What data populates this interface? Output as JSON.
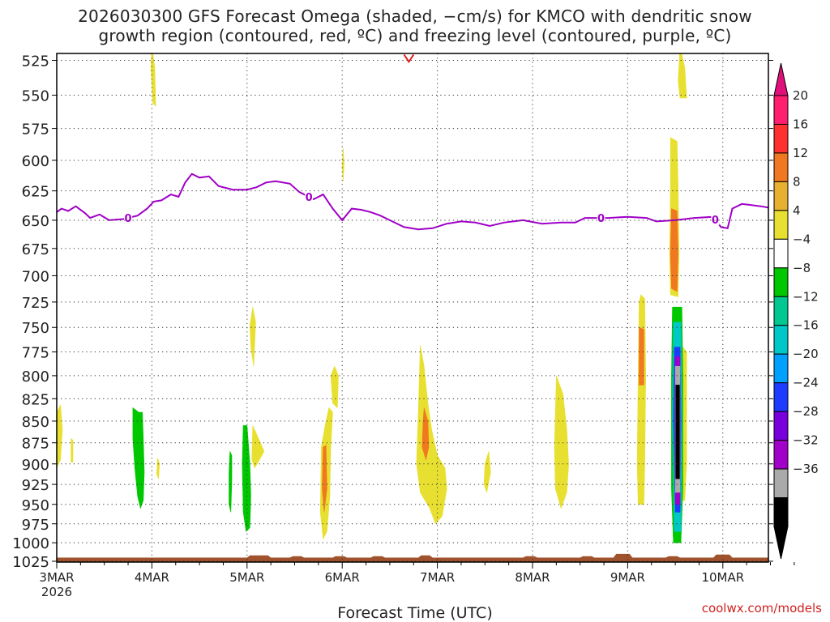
{
  "chart_data": {
    "type": "heatmap",
    "title_line1": "2026030300 GFS Forecast Omega (shaded, −cm/s) for KMCO with dendritic snow",
    "title_line2": "growth region (contoured, red, ºC) and freezing level (contoured, purple, ºC)",
    "xlabel": "Forecast Time (UTC)",
    "credit": "coolwx.com/models",
    "x_ticks": [
      {
        "day": 0,
        "label": "3MAR",
        "sub": "2026"
      },
      {
        "day": 1,
        "label": "4MAR"
      },
      {
        "day": 2,
        "label": "5MAR"
      },
      {
        "day": 3,
        "label": "6MAR"
      },
      {
        "day": 4,
        "label": "7MAR"
      },
      {
        "day": 5,
        "label": "8MAR"
      },
      {
        "day": 6,
        "label": "9MAR"
      },
      {
        "day": 7,
        "label": "10MAR"
      }
    ],
    "x_range_days": [
      0,
      7.7
    ],
    "y_ticks": [
      525,
      550,
      575,
      600,
      625,
      650,
      675,
      700,
      725,
      750,
      775,
      800,
      825,
      850,
      875,
      900,
      925,
      950,
      975,
      1000,
      1025
    ],
    "y_range_hpa": [
      520,
      1030
    ],
    "colorbar": {
      "labels": [
        "20",
        "16",
        "12",
        "8",
        "4",
        "−4",
        "−8",
        "−12",
        "−16",
        "−20",
        "−24",
        "−28",
        "−32",
        "−36"
      ],
      "colors": [
        "#ff1f6e",
        "#ff3030",
        "#f07820",
        "#e8b030",
        "#e8e030",
        "#ffffff",
        "#00c800",
        "#00c890",
        "#00c8c8",
        "#00a0ff",
        "#1e3cff",
        "#7800dc",
        "#a000c8",
        "#aaaaaa",
        "#000000"
      ],
      "top_arrow": "#e0107a",
      "bottom_arrow": "#000000"
    },
    "freezing_level": {
      "color": "#a000c8",
      "label": "0",
      "label_days": [
        0.75,
        2.65,
        5.72,
        6.92
      ],
      "points": [
        [
          0.0,
          643
        ],
        [
          0.05,
          640
        ],
        [
          0.12,
          642
        ],
        [
          0.2,
          638
        ],
        [
          0.3,
          644
        ],
        [
          0.35,
          648
        ],
        [
          0.45,
          645
        ],
        [
          0.55,
          650
        ],
        [
          0.7,
          649
        ],
        [
          0.85,
          646
        ],
        [
          0.95,
          640
        ],
        [
          1.02,
          634
        ],
        [
          1.1,
          633
        ],
        [
          1.2,
          628
        ],
        [
          1.28,
          630
        ],
        [
          1.35,
          618
        ],
        [
          1.42,
          611
        ],
        [
          1.5,
          614
        ],
        [
          1.6,
          613
        ],
        [
          1.7,
          621
        ],
        [
          1.85,
          624
        ],
        [
          2.0,
          624
        ],
        [
          2.1,
          622
        ],
        [
          2.2,
          618
        ],
        [
          2.3,
          617
        ],
        [
          2.45,
          619
        ],
        [
          2.55,
          626
        ],
        [
          2.7,
          632
        ],
        [
          2.8,
          628
        ],
        [
          2.9,
          640
        ],
        [
          3.0,
          650
        ],
        [
          3.1,
          640
        ],
        [
          3.2,
          641
        ],
        [
          3.3,
          643
        ],
        [
          3.4,
          646
        ],
        [
          3.5,
          650
        ],
        [
          3.65,
          656
        ],
        [
          3.8,
          658
        ],
        [
          3.95,
          657
        ],
        [
          4.1,
          653
        ],
        [
          4.25,
          651
        ],
        [
          4.4,
          652
        ],
        [
          4.55,
          655
        ],
        [
          4.7,
          652
        ],
        [
          4.9,
          650
        ],
        [
          5.1,
          653
        ],
        [
          5.3,
          652
        ],
        [
          5.45,
          652
        ],
        [
          5.55,
          648
        ],
        [
          5.8,
          648
        ],
        [
          6.0,
          647
        ],
        [
          6.2,
          648
        ],
        [
          6.3,
          651
        ],
        [
          6.5,
          650
        ],
        [
          6.7,
          648
        ],
        [
          6.9,
          647
        ],
        [
          6.98,
          656
        ],
        [
          7.05,
          657
        ],
        [
          7.1,
          640
        ],
        [
          7.2,
          636
        ],
        [
          7.4,
          638
        ],
        [
          7.6,
          641
        ],
        [
          7.7,
          641
        ]
      ]
    },
    "dgz_contour": {
      "color": "#e02020",
      "points": [
        [
          3.65,
          521
        ],
        [
          3.7,
          526
        ],
        [
          3.75,
          521
        ]
      ]
    },
    "omega_regions": [
      {
        "color": "#e8e030",
        "pts": [
          [
            1.0,
            515
          ],
          [
            1.03,
            530
          ],
          [
            1.04,
            558
          ],
          [
            1.01,
            556
          ],
          [
            0.99,
            530
          ]
        ]
      },
      {
        "color": "#e8e030",
        "pts": [
          [
            6.55,
            515
          ],
          [
            6.6,
            530
          ],
          [
            6.62,
            552
          ],
          [
            6.55,
            552
          ],
          [
            6.53,
            540
          ]
        ]
      },
      {
        "color": "#e8e030",
        "pts": [
          [
            3.01,
            590
          ],
          [
            3.02,
            603
          ],
          [
            3.01,
            617
          ],
          [
            3.0,
            605
          ]
        ]
      },
      {
        "color": "#e8e030",
        "pts": [
          [
            6.45,
            582
          ],
          [
            6.52,
            585
          ],
          [
            6.53,
            620
          ],
          [
            6.54,
            680
          ],
          [
            6.53,
            720
          ],
          [
            6.45,
            718
          ],
          [
            6.44,
            680
          ],
          [
            6.45,
            620
          ]
        ]
      },
      {
        "color": "#f07820",
        "pts": [
          [
            6.46,
            640
          ],
          [
            6.52,
            642
          ],
          [
            6.53,
            680
          ],
          [
            6.52,
            715
          ],
          [
            6.46,
            712
          ],
          [
            6.45,
            680
          ]
        ]
      },
      {
        "color": "#e8e030",
        "pts": [
          [
            2.06,
            730
          ],
          [
            2.09,
            745
          ],
          [
            2.07,
            790
          ],
          [
            2.04,
            770
          ],
          [
            2.03,
            748
          ]
        ]
      },
      {
        "color": "#e8e030",
        "pts": [
          [
            0.0,
            840
          ],
          [
            0.04,
            832
          ],
          [
            0.06,
            860
          ],
          [
            0.04,
            895
          ],
          [
            0.0,
            905
          ]
        ]
      },
      {
        "color": "#e8e030",
        "pts": [
          [
            0.15,
            870
          ],
          [
            0.17,
            872
          ],
          [
            0.17,
            898
          ],
          [
            0.15,
            898
          ]
        ]
      },
      {
        "color": "#e8e030",
        "pts": [
          [
            1.06,
            893
          ],
          [
            1.08,
            900
          ],
          [
            1.07,
            918
          ],
          [
            1.05,
            912
          ]
        ]
      },
      {
        "color": "#e8e030",
        "pts": [
          [
            2.06,
            855
          ],
          [
            2.12,
            870
          ],
          [
            2.18,
            885
          ],
          [
            2.13,
            895
          ],
          [
            2.08,
            905
          ],
          [
            2.05,
            895
          ]
        ]
      },
      {
        "color": "#e8e030",
        "pts": [
          [
            2.88,
            800
          ],
          [
            2.92,
            790
          ],
          [
            2.96,
            800
          ],
          [
            2.95,
            835
          ],
          [
            2.9,
            830
          ]
        ]
      },
      {
        "color": "#e8e030",
        "pts": [
          [
            2.82,
            855
          ],
          [
            2.86,
            835
          ],
          [
            2.9,
            840
          ],
          [
            2.88,
            880
          ],
          [
            2.87,
            940
          ],
          [
            2.84,
            985
          ],
          [
            2.8,
            995
          ],
          [
            2.77,
            960
          ],
          [
            2.78,
            880
          ]
        ]
      },
      {
        "color": "#f07820",
        "pts": [
          [
            2.8,
            880
          ],
          [
            2.83,
            878
          ],
          [
            2.84,
            930
          ],
          [
            2.81,
            960
          ],
          [
            2.79,
            930
          ]
        ]
      },
      {
        "color": "#e8e030",
        "pts": [
          [
            3.82,
            768
          ],
          [
            3.86,
            790
          ],
          [
            3.9,
            830
          ],
          [
            3.94,
            860
          ],
          [
            4.0,
            890
          ],
          [
            4.08,
            905
          ],
          [
            4.1,
            930
          ],
          [
            4.05,
            965
          ],
          [
            3.98,
            975
          ],
          [
            3.92,
            955
          ],
          [
            3.82,
            935
          ],
          [
            3.78,
            900
          ],
          [
            3.8,
            840
          ]
        ]
      },
      {
        "color": "#f07820",
        "pts": [
          [
            3.86,
            835
          ],
          [
            3.9,
            850
          ],
          [
            3.91,
            880
          ],
          [
            3.88,
            895
          ],
          [
            3.84,
            880
          ],
          [
            3.85,
            850
          ]
        ]
      },
      {
        "color": "#e8e030",
        "pts": [
          [
            4.5,
            900
          ],
          [
            4.54,
            885
          ],
          [
            4.56,
            910
          ],
          [
            4.52,
            935
          ],
          [
            4.49,
            925
          ]
        ]
      },
      {
        "color": "#e8e030",
        "pts": [
          [
            5.25,
            800
          ],
          [
            5.32,
            820
          ],
          [
            5.36,
            860
          ],
          [
            5.38,
            900
          ],
          [
            5.36,
            935
          ],
          [
            5.3,
            955
          ],
          [
            5.24,
            930
          ],
          [
            5.23,
            880
          ],
          [
            5.24,
            840
          ]
        ]
      },
      {
        "color": "#e8e030",
        "pts": [
          [
            6.14,
            718
          ],
          [
            6.18,
            722
          ],
          [
            6.19,
            800
          ],
          [
            6.18,
            900
          ],
          [
            6.17,
            950
          ],
          [
            6.11,
            950
          ],
          [
            6.1,
            900
          ],
          [
            6.11,
            800
          ],
          [
            6.12,
            725
          ]
        ]
      },
      {
        "color": "#f07820",
        "pts": [
          [
            6.12,
            750
          ],
          [
            6.17,
            752
          ],
          [
            6.17,
            810
          ],
          [
            6.12,
            810
          ]
        ]
      },
      {
        "color": "#e8e030",
        "pts": [
          [
            6.58,
            770
          ],
          [
            6.62,
            775
          ],
          [
            6.62,
            900
          ],
          [
            6.6,
            945
          ],
          [
            6.56,
            945
          ],
          [
            6.55,
            850
          ],
          [
            6.56,
            785
          ]
        ]
      },
      {
        "color": "#00c800",
        "pts": [
          [
            0.8,
            835
          ],
          [
            0.86,
            840
          ],
          [
            0.9,
            840
          ],
          [
            0.91,
            870
          ],
          [
            0.92,
            910
          ],
          [
            0.91,
            945
          ],
          [
            0.88,
            955
          ],
          [
            0.85,
            940
          ],
          [
            0.82,
            905
          ],
          [
            0.8,
            870
          ]
        ]
      },
      {
        "color": "#00c800",
        "pts": [
          [
            1.82,
            885
          ],
          [
            1.84,
            890
          ],
          [
            1.84,
            920
          ],
          [
            1.83,
            960
          ],
          [
            1.81,
            950
          ],
          [
            1.81,
            910
          ]
        ]
      },
      {
        "color": "#00c800",
        "pts": [
          [
            1.96,
            855
          ],
          [
            2.0,
            855
          ],
          [
            2.03,
            900
          ],
          [
            2.04,
            940
          ],
          [
            2.03,
            980
          ],
          [
            1.99,
            985
          ],
          [
            1.96,
            960
          ],
          [
            1.95,
            900
          ]
        ]
      },
      {
        "color": "#00c800",
        "pts": [
          [
            6.47,
            730
          ],
          [
            6.57,
            730
          ],
          [
            6.58,
            800
          ],
          [
            6.58,
            930
          ],
          [
            6.56,
            1000
          ],
          [
            6.48,
            1000
          ],
          [
            6.46,
            930
          ],
          [
            6.46,
            800
          ]
        ]
      },
      {
        "color": "#00c8c8",
        "pts": [
          [
            6.48,
            745
          ],
          [
            6.56,
            745
          ],
          [
            6.57,
            850
          ],
          [
            6.56,
            985
          ],
          [
            6.49,
            985
          ],
          [
            6.47,
            850
          ]
        ]
      },
      {
        "color": "#1e3cff",
        "pts": [
          [
            6.49,
            770
          ],
          [
            6.55,
            770
          ],
          [
            6.56,
            850
          ],
          [
            6.55,
            960
          ],
          [
            6.5,
            960
          ],
          [
            6.48,
            850
          ]
        ]
      },
      {
        "color": "#a000c8",
        "pts": [
          [
            6.5,
            780
          ],
          [
            6.55,
            780
          ],
          [
            6.55,
            950
          ],
          [
            6.5,
            950
          ]
        ]
      },
      {
        "color": "#aaaaaa",
        "pts": [
          [
            6.5,
            790
          ],
          [
            6.55,
            790
          ],
          [
            6.55,
            935
          ],
          [
            6.5,
            935
          ]
        ]
      },
      {
        "color": "#000000",
        "pts": [
          [
            6.505,
            810
          ],
          [
            6.545,
            810
          ],
          [
            6.545,
            918
          ],
          [
            6.505,
            918
          ]
        ]
      }
    ],
    "ground": {
      "color": "#a0522d",
      "top_hpa": 1020,
      "bumps": [
        [
          2.0,
          2.25,
          1017
        ],
        [
          2.45,
          2.6,
          1018
        ],
        [
          2.9,
          3.05,
          1018
        ],
        [
          3.3,
          3.45,
          1018
        ],
        [
          3.8,
          3.95,
          1017
        ],
        [
          4.9,
          5.05,
          1018
        ],
        [
          5.5,
          5.65,
          1018
        ],
        [
          5.85,
          6.05,
          1015
        ],
        [
          6.4,
          6.55,
          1018
        ],
        [
          6.9,
          7.1,
          1016
        ]
      ]
    }
  }
}
